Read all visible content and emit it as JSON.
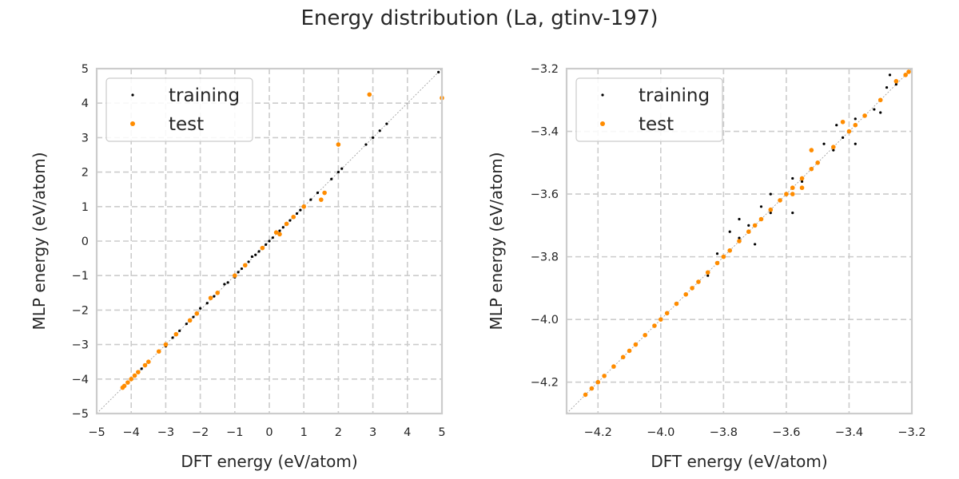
{
  "figure": {
    "title": "Energy distribution (La, gtinv-197)"
  },
  "colors": {
    "training": "#000000",
    "test": "#ff8c00",
    "grid": "#cccccc",
    "diagonal": "#999999",
    "spine": "#cccccc"
  },
  "chart_data": [
    {
      "type": "scatter",
      "xlabel": "DFT energy (eV/atom)",
      "ylabel": "MLP energy (eV/atom)",
      "xlim": [
        -5,
        5
      ],
      "ylim": [
        -5,
        5
      ],
      "xticks": [
        "−5",
        "−4",
        "−3",
        "−2",
        "−1",
        "0",
        "1",
        "2",
        "3",
        "4",
        "5"
      ],
      "yticks": [
        "−5",
        "−4",
        "−3",
        "−2",
        "−1",
        "0",
        "1",
        "2",
        "3",
        "4",
        "5"
      ],
      "grid": true,
      "legend_position": "upper-left",
      "diagonal": "y = x",
      "series": [
        {
          "name": "training",
          "color": "#000000",
          "points": [
            [
              -4.2,
              -4.2
            ],
            [
              -4.1,
              -4.1
            ],
            [
              -3.9,
              -3.9
            ],
            [
              -3.7,
              -3.7
            ],
            [
              -3.5,
              -3.5
            ],
            [
              -3.2,
              -3.2
            ],
            [
              -3.0,
              -3.05
            ],
            [
              -2.8,
              -2.8
            ],
            [
              -2.6,
              -2.6
            ],
            [
              -2.4,
              -2.4
            ],
            [
              -2.2,
              -2.2
            ],
            [
              -2.0,
              -1.95
            ],
            [
              -1.8,
              -1.8
            ],
            [
              -1.6,
              -1.6
            ],
            [
              -1.5,
              -1.5
            ],
            [
              -1.3,
              -1.25
            ],
            [
              -1.2,
              -1.2
            ],
            [
              -1.0,
              -1.05
            ],
            [
              -0.9,
              -0.9
            ],
            [
              -0.8,
              -0.8
            ],
            [
              -0.6,
              -0.6
            ],
            [
              -0.5,
              -0.45
            ],
            [
              -0.4,
              -0.4
            ],
            [
              -0.3,
              -0.3
            ],
            [
              -0.2,
              -0.2
            ],
            [
              -0.1,
              -0.1
            ],
            [
              0.0,
              0.0
            ],
            [
              0.1,
              0.1
            ],
            [
              0.2,
              0.25
            ],
            [
              0.3,
              0.3
            ],
            [
              0.4,
              0.4
            ],
            [
              0.5,
              0.5
            ],
            [
              0.6,
              0.6
            ],
            [
              0.7,
              0.7
            ],
            [
              0.8,
              0.8
            ],
            [
              0.9,
              0.9
            ],
            [
              1.0,
              1.0
            ],
            [
              1.2,
              1.2
            ],
            [
              1.4,
              1.4
            ],
            [
              1.8,
              1.8
            ],
            [
              2.0,
              2.0
            ],
            [
              2.1,
              2.1
            ],
            [
              2.8,
              2.8
            ],
            [
              3.0,
              3.0
            ],
            [
              3.2,
              3.2
            ],
            [
              3.4,
              3.4
            ],
            [
              4.9,
              4.9
            ]
          ]
        },
        {
          "name": "test",
          "color": "#ff8c00",
          "points": [
            [
              -4.25,
              -4.25
            ],
            [
              -4.2,
              -4.2
            ],
            [
              -4.1,
              -4.1
            ],
            [
              -4.0,
              -4.0
            ],
            [
              -3.9,
              -3.9
            ],
            [
              -3.8,
              -3.8
            ],
            [
              -3.6,
              -3.6
            ],
            [
              -3.5,
              -3.5
            ],
            [
              -3.2,
              -3.2
            ],
            [
              -3.0,
              -3.0
            ],
            [
              -2.7,
              -2.7
            ],
            [
              -2.3,
              -2.3
            ],
            [
              -2.1,
              -2.1
            ],
            [
              -1.7,
              -1.65
            ],
            [
              -1.5,
              -1.5
            ],
            [
              -1.0,
              -1.0
            ],
            [
              -0.7,
              -0.7
            ],
            [
              -0.2,
              -0.2
            ],
            [
              0.2,
              0.25
            ],
            [
              0.3,
              0.2
            ],
            [
              0.5,
              0.5
            ],
            [
              0.7,
              0.7
            ],
            [
              1.0,
              1.0
            ],
            [
              1.5,
              1.2
            ],
            [
              1.6,
              1.4
            ],
            [
              2.0,
              2.8
            ],
            [
              2.9,
              4.25
            ],
            [
              5.0,
              4.15
            ]
          ]
        }
      ]
    },
    {
      "type": "scatter",
      "xlabel": "DFT energy (eV/atom)",
      "ylabel": "MLP energy (eV/atom)",
      "xlim": [
        -4.3,
        -3.2
      ],
      "ylim": [
        -4.3,
        -3.2
      ],
      "xticks": [
        "−4.2",
        "−4.0",
        "−3.8",
        "−3.6",
        "−3.4",
        "−3.2"
      ],
      "yticks": [
        "−4.2",
        "−4.0",
        "−3.8",
        "−3.6",
        "−3.4",
        "−3.2"
      ],
      "grid": true,
      "legend_position": "upper-left",
      "diagonal": "y = x",
      "series": [
        {
          "name": "training",
          "color": "#000000",
          "points": [
            [
              -4.24,
              -4.24
            ],
            [
              -4.2,
              -4.2
            ],
            [
              -4.15,
              -4.15
            ],
            [
              -4.1,
              -4.1
            ],
            [
              -4.05,
              -4.05
            ],
            [
              -4.0,
              -4.0
            ],
            [
              -3.95,
              -3.95
            ],
            [
              -3.9,
              -3.9
            ],
            [
              -3.85,
              -3.86
            ],
            [
              -3.8,
              -3.8
            ],
            [
              -3.78,
              -3.72
            ],
            [
              -3.75,
              -3.74
            ],
            [
              -3.72,
              -3.7
            ],
            [
              -3.7,
              -3.7
            ],
            [
              -3.68,
              -3.64
            ],
            [
              -3.65,
              -3.66
            ],
            [
              -3.62,
              -3.62
            ],
            [
              -3.6,
              -3.6
            ],
            [
              -3.58,
              -3.55
            ],
            [
              -3.55,
              -3.56
            ],
            [
              -3.52,
              -3.52
            ],
            [
              -3.5,
              -3.5
            ],
            [
              -3.48,
              -3.44
            ],
            [
              -3.45,
              -3.46
            ],
            [
              -3.42,
              -3.42
            ],
            [
              -3.4,
              -3.4
            ],
            [
              -3.38,
              -3.36
            ],
            [
              -3.35,
              -3.35
            ],
            [
              -3.32,
              -3.33
            ],
            [
              -3.3,
              -3.3
            ],
            [
              -3.28,
              -3.26
            ],
            [
              -3.25,
              -3.25
            ],
            [
              -3.22,
              -3.22
            ],
            [
              -3.58,
              -3.66
            ],
            [
              -3.75,
              -3.68
            ],
            [
              -3.38,
              -3.44
            ],
            [
              -3.3,
              -3.34
            ],
            [
              -3.82,
              -3.79
            ],
            [
              -3.7,
              -3.76
            ],
            [
              -3.44,
              -3.38
            ],
            [
              -3.27,
              -3.22
            ],
            [
              -3.65,
              -3.6
            ]
          ]
        },
        {
          "name": "test",
          "color": "#ff8c00",
          "points": [
            [
              -4.24,
              -4.24
            ],
            [
              -4.22,
              -4.22
            ],
            [
              -4.2,
              -4.2
            ],
            [
              -4.18,
              -4.18
            ],
            [
              -4.15,
              -4.15
            ],
            [
              -4.12,
              -4.12
            ],
            [
              -4.1,
              -4.1
            ],
            [
              -4.08,
              -4.08
            ],
            [
              -4.05,
              -4.05
            ],
            [
              -4.02,
              -4.02
            ],
            [
              -4.0,
              -4.0
            ],
            [
              -3.98,
              -3.98
            ],
            [
              -3.95,
              -3.95
            ],
            [
              -3.92,
              -3.92
            ],
            [
              -3.9,
              -3.9
            ],
            [
              -3.88,
              -3.88
            ],
            [
              -3.85,
              -3.85
            ],
            [
              -3.82,
              -3.82
            ],
            [
              -3.8,
              -3.8
            ],
            [
              -3.78,
              -3.78
            ],
            [
              -3.75,
              -3.75
            ],
            [
              -3.72,
              -3.72
            ],
            [
              -3.7,
              -3.7
            ],
            [
              -3.68,
              -3.68
            ],
            [
              -3.65,
              -3.65
            ],
            [
              -3.62,
              -3.62
            ],
            [
              -3.6,
              -3.6
            ],
            [
              -3.58,
              -3.58
            ],
            [
              -3.55,
              -3.55
            ],
            [
              -3.52,
              -3.52
            ],
            [
              -3.5,
              -3.5
            ],
            [
              -3.52,
              -3.46
            ],
            [
              -3.55,
              -3.58
            ],
            [
              -3.58,
              -3.6
            ],
            [
              -3.45,
              -3.45
            ],
            [
              -3.42,
              -3.37
            ],
            [
              -3.4,
              -3.4
            ],
            [
              -3.38,
              -3.38
            ],
            [
              -3.35,
              -3.35
            ],
            [
              -3.3,
              -3.3
            ],
            [
              -3.25,
              -3.24
            ],
            [
              -3.22,
              -3.22
            ],
            [
              -3.21,
              -3.21
            ]
          ]
        }
      ]
    }
  ]
}
